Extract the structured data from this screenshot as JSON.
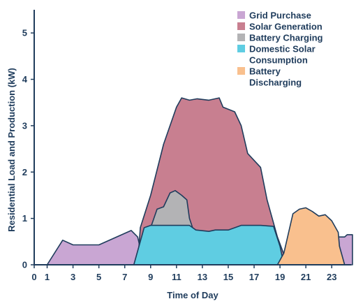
{
  "chart_data": {
    "type": "area",
    "title": "",
    "xlabel": "Time of Day",
    "ylabel": "Residential Load and Production (kW)",
    "xlim": [
      0,
      24.5
    ],
    "ylim": [
      0,
      5.5
    ],
    "x_ticks": [
      0,
      1,
      3,
      5,
      7,
      9,
      11,
      13,
      15,
      17,
      19,
      21,
      23
    ],
    "y_ticks": [
      0,
      1,
      2,
      3,
      4,
      5
    ],
    "grid": false,
    "legend_position": "top-right",
    "series": [
      {
        "name": "Grid Purchase",
        "color": "#c9a6d3",
        "points": [
          [
            1,
            0
          ],
          [
            2.2,
            0.53
          ],
          [
            3,
            0.43
          ],
          [
            5,
            0.43
          ],
          [
            7.5,
            0.74
          ],
          [
            8,
            0.6
          ],
          [
            8.5,
            0
          ],
          [
            23,
            0
          ],
          [
            23.3,
            0.6
          ],
          [
            24,
            0.6
          ],
          [
            24.2,
            0.65
          ],
          [
            24.6,
            0.65
          ],
          [
            24.6,
            0
          ]
        ]
      },
      {
        "name": "Solar Generation",
        "color": "#c87f90",
        "points": [
          [
            8,
            0
          ],
          [
            8.2,
            0.8
          ],
          [
            9,
            1.5
          ],
          [
            10,
            2.6
          ],
          [
            11,
            3.4
          ],
          [
            11.4,
            3.6
          ],
          [
            12,
            3.55
          ],
          [
            12.6,
            3.58
          ],
          [
            13.5,
            3.55
          ],
          [
            14.3,
            3.6
          ],
          [
            14.6,
            3.4
          ],
          [
            15.5,
            3.3
          ],
          [
            16,
            3
          ],
          [
            16.5,
            2.4
          ],
          [
            17.5,
            2.1
          ],
          [
            18,
            1.4
          ],
          [
            18.8,
            0.6
          ],
          [
            19.6,
            0
          ]
        ]
      },
      {
        "name": "Battery Charging",
        "color": "#b3b3b5",
        "points": [
          [
            8.6,
            0
          ],
          [
            9,
            0.8
          ],
          [
            9.5,
            1.2
          ],
          [
            10,
            1.25
          ],
          [
            10.5,
            1.55
          ],
          [
            10.9,
            1.6
          ],
          [
            11.4,
            1.5
          ],
          [
            11.8,
            1.4
          ],
          [
            12,
            1
          ],
          [
            12.6,
            0.5
          ],
          [
            12.9,
            0
          ]
        ]
      },
      {
        "name": "Domestic Solar Consumption",
        "color": "#5fcde2",
        "points": [
          [
            7.7,
            0
          ],
          [
            8.5,
            0.8
          ],
          [
            9,
            0.85
          ],
          [
            11,
            0.85
          ],
          [
            12,
            0.85
          ],
          [
            12.5,
            0.75
          ],
          [
            13.5,
            0.72
          ],
          [
            14,
            0.75
          ],
          [
            15,
            0.75
          ],
          [
            16,
            0.85
          ],
          [
            17.5,
            0.85
          ],
          [
            18.5,
            0.83
          ],
          [
            19,
            0.4
          ],
          [
            19.3,
            0
          ]
        ]
      },
      {
        "name": "Battery Discharging",
        "color": "#f9c08e",
        "points": [
          [
            18.8,
            0
          ],
          [
            19.3,
            0.25
          ],
          [
            20,
            1.1
          ],
          [
            20.5,
            1.2
          ],
          [
            21,
            1.23
          ],
          [
            21.5,
            1.15
          ],
          [
            22,
            1.05
          ],
          [
            22.5,
            1.08
          ],
          [
            23,
            0.95
          ],
          [
            23.5,
            0.7
          ],
          [
            23.6,
            0.4
          ],
          [
            24,
            0
          ]
        ]
      }
    ]
  }
}
